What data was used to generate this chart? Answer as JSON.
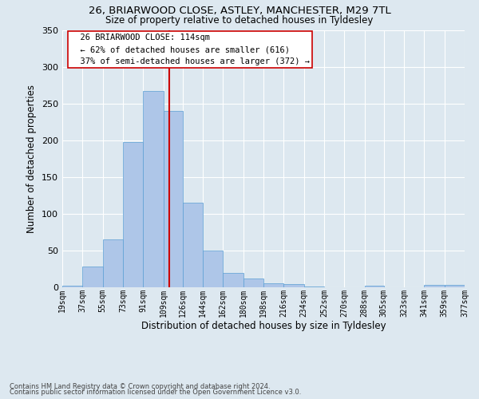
{
  "title1": "26, BRIARWOOD CLOSE, ASTLEY, MANCHESTER, M29 7TL",
  "title2": "Size of property relative to detached houses in Tyldesley",
  "xlabel": "Distribution of detached houses by size in Tyldesley",
  "ylabel": "Number of detached properties",
  "footnote1": "Contains HM Land Registry data © Crown copyright and database right 2024.",
  "footnote2": "Contains public sector information licensed under the Open Government Licence v3.0.",
  "annotation_line1": "26 BRIARWOOD CLOSE: 114sqm",
  "annotation_line2": "← 62% of detached houses are smaller (616)",
  "annotation_line3": "37% of semi-detached houses are larger (372) →",
  "property_size": 114,
  "bin_edges": [
    19,
    37,
    55,
    73,
    91,
    109,
    126,
    144,
    162,
    180,
    198,
    216,
    234,
    252,
    270,
    288,
    305,
    323,
    341,
    359,
    377
  ],
  "bar_heights": [
    2,
    28,
    65,
    197,
    267,
    240,
    115,
    50,
    20,
    12,
    5,
    4,
    1,
    0,
    0,
    2,
    0,
    0,
    3,
    3
  ],
  "bar_color": "#aec6e8",
  "bar_edge_color": "#5a9fd4",
  "vline_color": "#cc0000",
  "vline_x": 114,
  "ylim": [
    0,
    350
  ],
  "yticks": [
    0,
    50,
    100,
    150,
    200,
    250,
    300,
    350
  ],
  "background_color": "#dde8f0",
  "grid_color": "#ffffff",
  "annotation_box_color": "#ffffff",
  "annotation_box_edge": "#cc0000"
}
